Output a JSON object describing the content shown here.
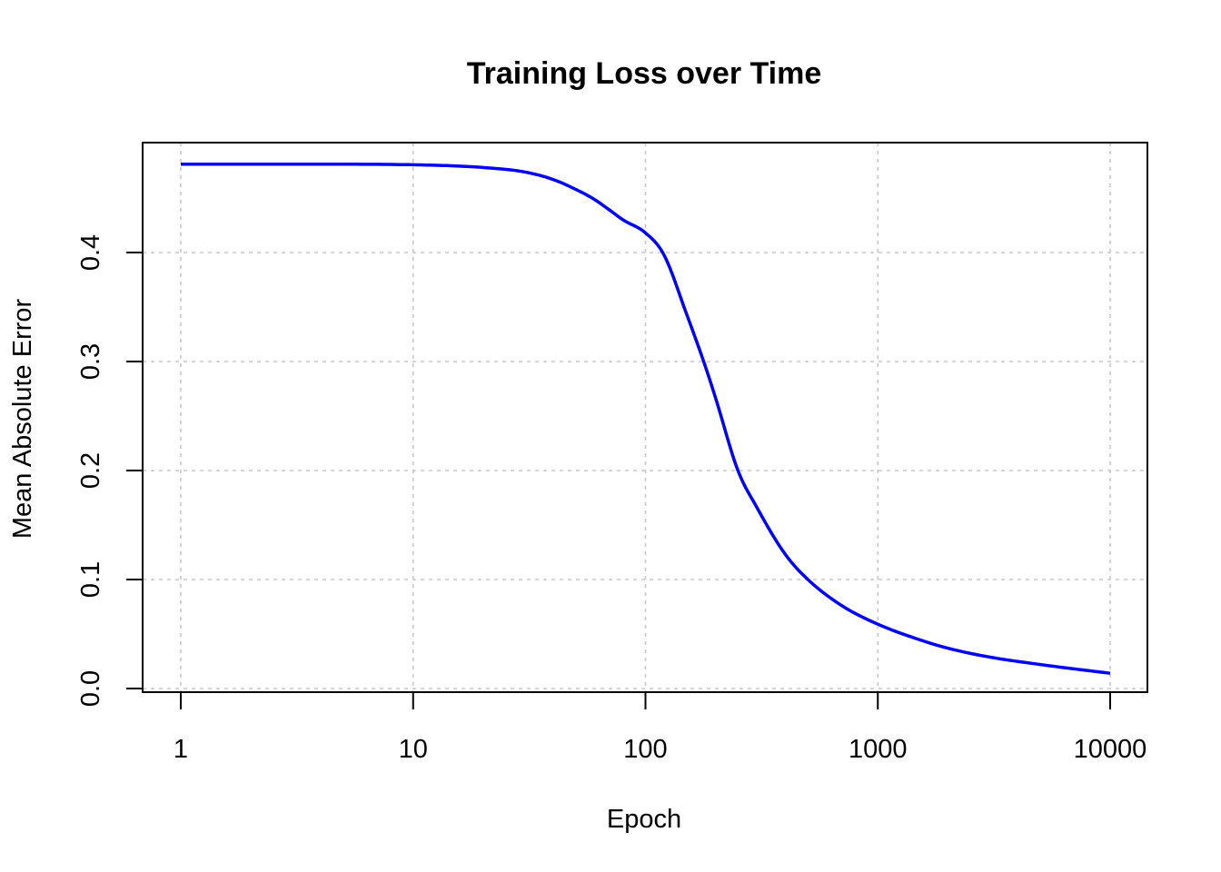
{
  "chart_data": {
    "type": "line",
    "title": "Training Loss over Time",
    "xlabel": "Epoch",
    "ylabel": "Mean Absolute Error",
    "x_scale": "log",
    "xlim": [
      1,
      10000
    ],
    "ylim": [
      0,
      0.48
    ],
    "x_ticks": [
      1,
      10,
      100,
      1000,
      10000
    ],
    "x_tick_labels": [
      "1",
      "10",
      "100",
      "1000",
      "10000"
    ],
    "y_ticks": [
      0,
      0.1,
      0.2,
      0.3,
      0.4
    ],
    "y_tick_labels": [
      "0.0",
      "0.1",
      "0.2",
      "0.3",
      "0.4"
    ],
    "grid": true,
    "series": [
      {
        "color": "#0000ff",
        "points": [
          [
            1,
            0.481
          ],
          [
            2,
            0.481
          ],
          [
            5,
            0.481
          ],
          [
            10,
            0.4805
          ],
          [
            15,
            0.4795
          ],
          [
            20,
            0.478
          ],
          [
            30,
            0.474
          ],
          [
            40,
            0.467
          ],
          [
            50,
            0.458
          ],
          [
            60,
            0.449
          ],
          [
            70,
            0.439
          ],
          [
            80,
            0.43
          ],
          [
            100,
            0.418
          ],
          [
            120,
            0.398
          ],
          [
            150,
            0.344
          ],
          [
            180,
            0.297
          ],
          [
            200,
            0.267
          ],
          [
            250,
            0.2
          ],
          [
            300,
            0.167
          ],
          [
            400,
            0.123
          ],
          [
            500,
            0.1
          ],
          [
            700,
            0.076
          ],
          [
            1000,
            0.059
          ],
          [
            1500,
            0.045
          ],
          [
            2000,
            0.037
          ],
          [
            3000,
            0.029
          ],
          [
            5000,
            0.022
          ],
          [
            7000,
            0.018
          ],
          [
            10000,
            0.014
          ]
        ]
      }
    ]
  }
}
